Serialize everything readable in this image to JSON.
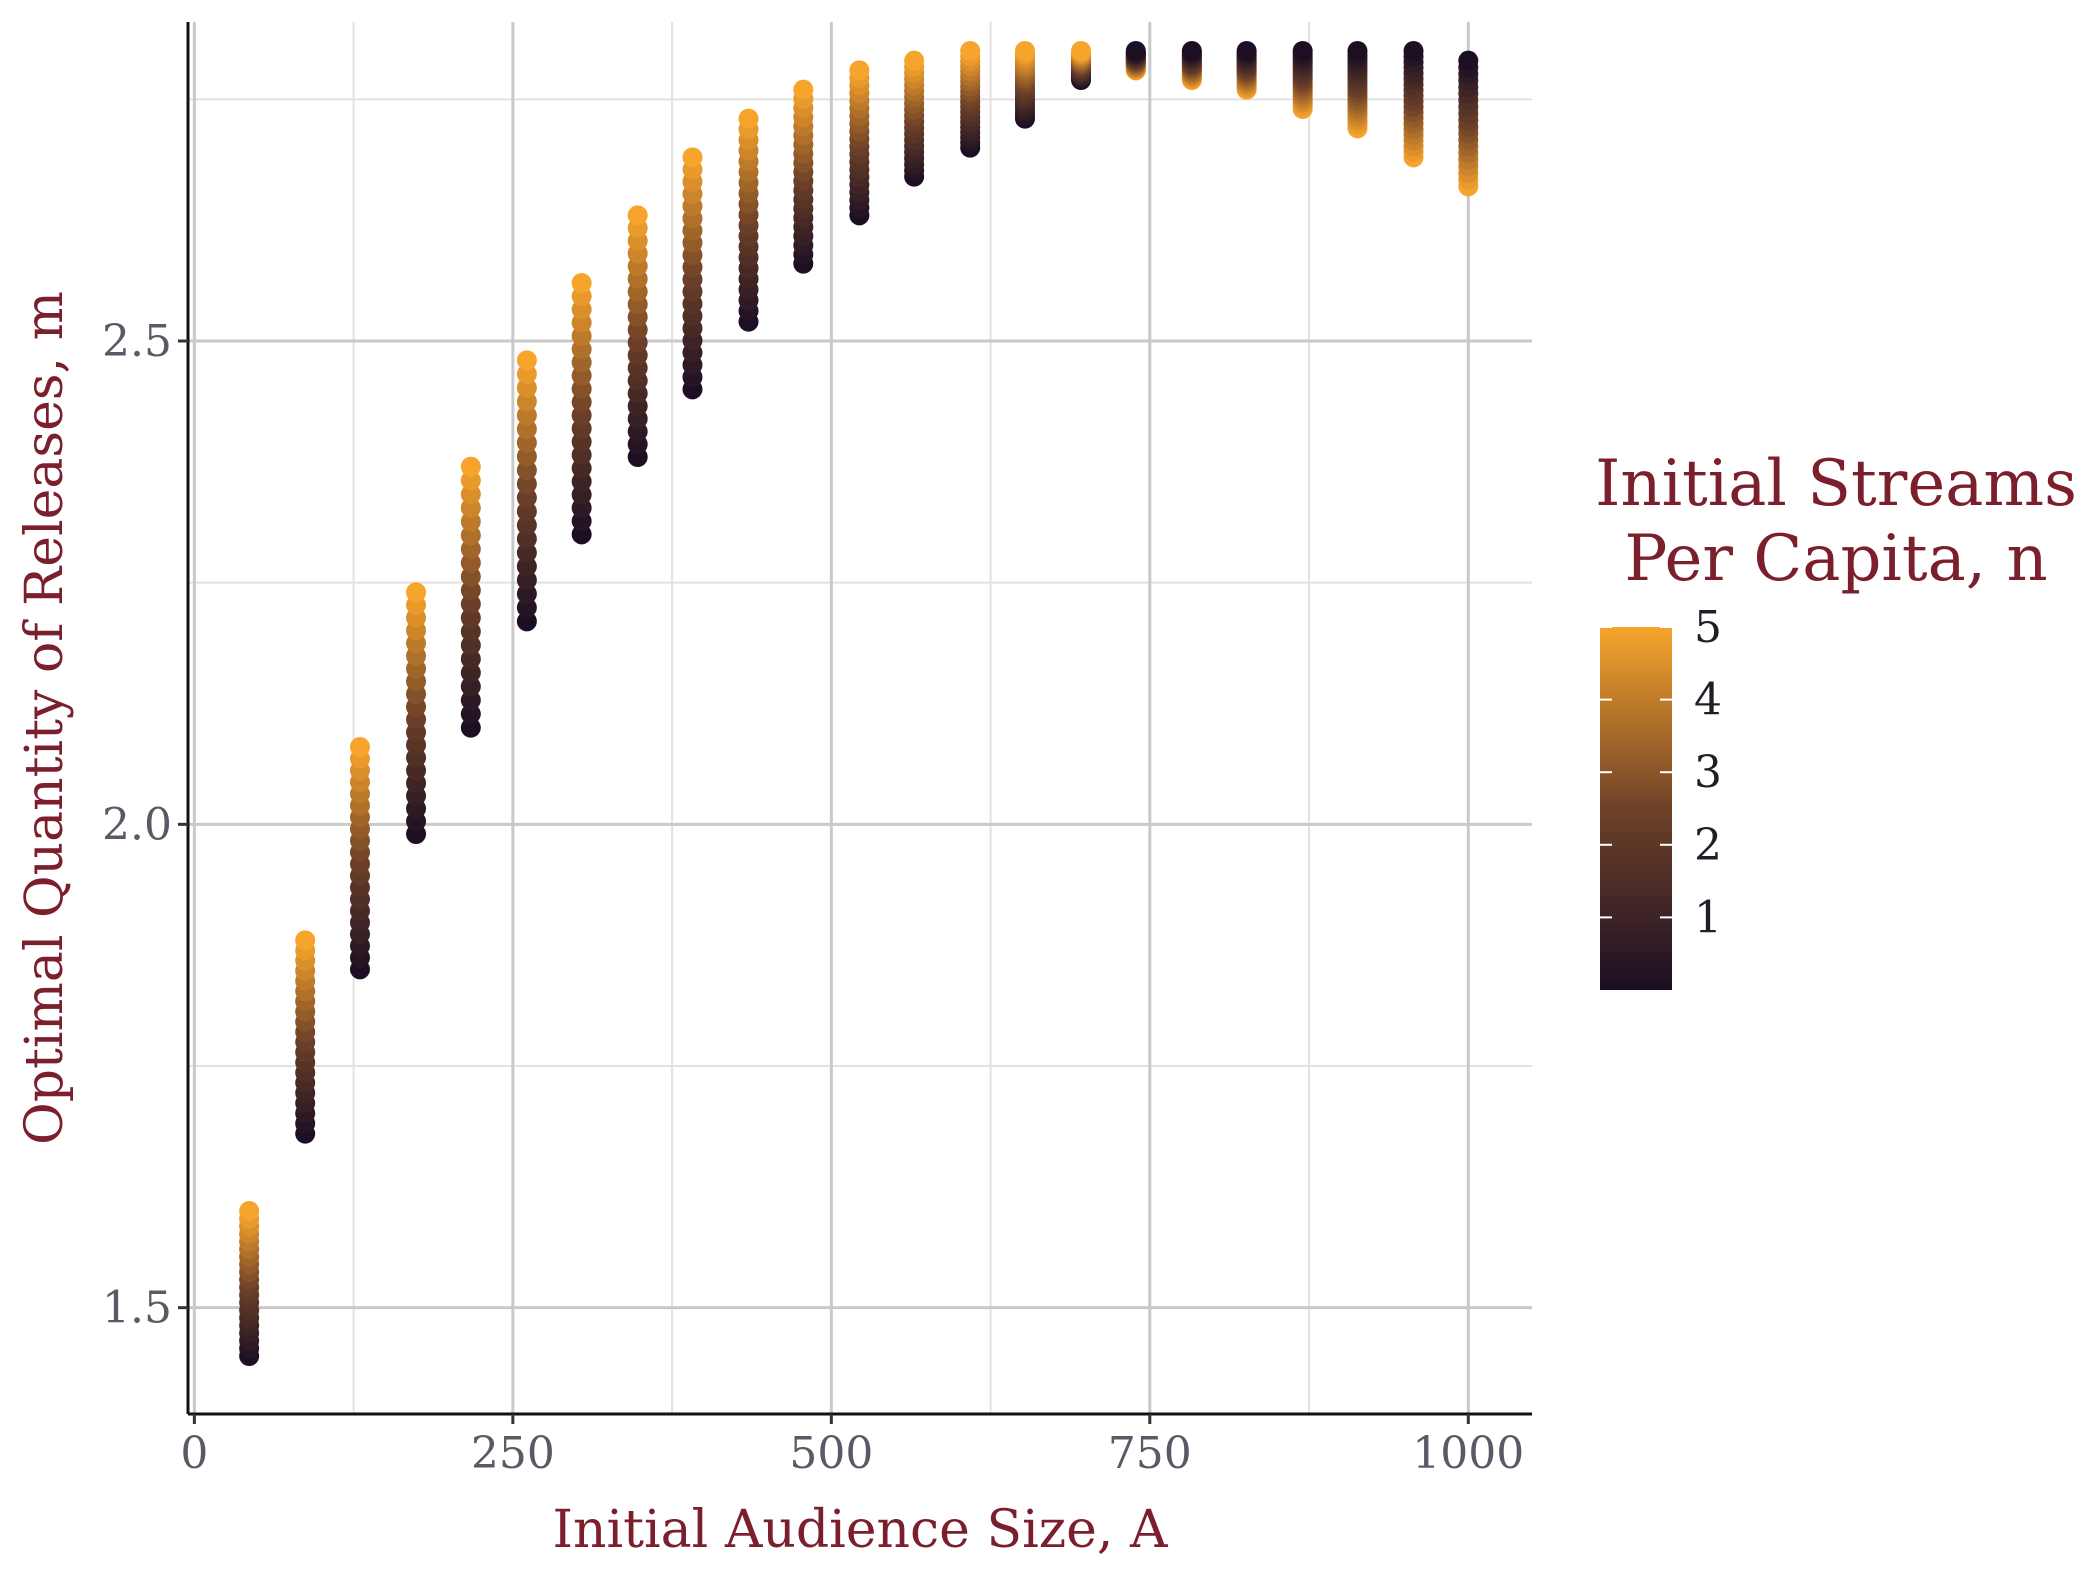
{
  "chart_data": {
    "type": "scatter",
    "title": "",
    "xlabel": "Initial Audience Size, A",
    "ylabel": "Optimal Quantity of Releases, m",
    "xlim": [
      -5,
      1050
    ],
    "ylim": [
      1.39,
      2.83
    ],
    "x_ticks": [
      0,
      250,
      500,
      750,
      1000
    ],
    "x_tick_labels": [
      "0",
      "250",
      "500",
      "750",
      "1000"
    ],
    "y_ticks": [
      1.5,
      2.0,
      2.5
    ],
    "y_tick_labels": [
      "1.5",
      "2.0",
      "2.5"
    ],
    "grid": true,
    "legend_position": "right",
    "color_scale": {
      "title_lines": [
        "Initial Streams",
        "Per Capita, n"
      ],
      "min": 0,
      "max": 5,
      "ticks": [
        1,
        2,
        3,
        4,
        5
      ],
      "tick_labels": [
        "1",
        "2",
        "3",
        "4",
        "5"
      ],
      "low_color": "#1c0f24",
      "mid_color": "#6e4128",
      "high_color": "#f7a42c"
    },
    "n_points_per_column": 20,
    "columns": [
      {
        "x": 43,
        "y_low": 1.45,
        "y_high": 1.6,
        "low_at_small_n": true
      },
      {
        "x": 87,
        "y_low": 1.68,
        "y_high": 1.88,
        "low_at_small_n": true
      },
      {
        "x": 130,
        "y_low": 1.85,
        "y_high": 2.08,
        "low_at_small_n": true
      },
      {
        "x": 174,
        "y_low": 1.99,
        "y_high": 2.24,
        "low_at_small_n": true
      },
      {
        "x": 217,
        "y_low": 2.1,
        "y_high": 2.37,
        "low_at_small_n": true
      },
      {
        "x": 261,
        "y_low": 2.21,
        "y_high": 2.48,
        "low_at_small_n": true
      },
      {
        "x": 304,
        "y_low": 2.3,
        "y_high": 2.56,
        "low_at_small_n": true
      },
      {
        "x": 348,
        "y_low": 2.38,
        "y_high": 2.63,
        "low_at_small_n": true
      },
      {
        "x": 391,
        "y_low": 2.45,
        "y_high": 2.69,
        "low_at_small_n": true
      },
      {
        "x": 435,
        "y_low": 2.52,
        "y_high": 2.73,
        "low_at_small_n": true
      },
      {
        "x": 478,
        "y_low": 2.58,
        "y_high": 2.76,
        "low_at_small_n": true
      },
      {
        "x": 522,
        "y_low": 2.63,
        "y_high": 2.78,
        "low_at_small_n": true
      },
      {
        "x": 565,
        "y_low": 2.67,
        "y_high": 2.79,
        "low_at_small_n": true
      },
      {
        "x": 609,
        "y_low": 2.7,
        "y_high": 2.8,
        "low_at_small_n": true
      },
      {
        "x": 652,
        "y_low": 2.73,
        "y_high": 2.8,
        "low_at_small_n": true
      },
      {
        "x": 696,
        "y_low": 2.77,
        "y_high": 2.8,
        "low_at_small_n": true
      },
      {
        "x": 739,
        "y_low": 2.78,
        "y_high": 2.8,
        "low_at_small_n": false
      },
      {
        "x": 783,
        "y_low": 2.77,
        "y_high": 2.8,
        "low_at_small_n": false
      },
      {
        "x": 826,
        "y_low": 2.76,
        "y_high": 2.8,
        "low_at_small_n": false
      },
      {
        "x": 870,
        "y_low": 2.74,
        "y_high": 2.8,
        "low_at_small_n": false
      },
      {
        "x": 913,
        "y_low": 2.72,
        "y_high": 2.8,
        "low_at_small_n": false
      },
      {
        "x": 957,
        "y_low": 2.69,
        "y_high": 2.8,
        "low_at_small_n": false
      },
      {
        "x": 1000,
        "y_low": 2.66,
        "y_high": 2.79,
        "low_at_small_n": false
      }
    ]
  }
}
